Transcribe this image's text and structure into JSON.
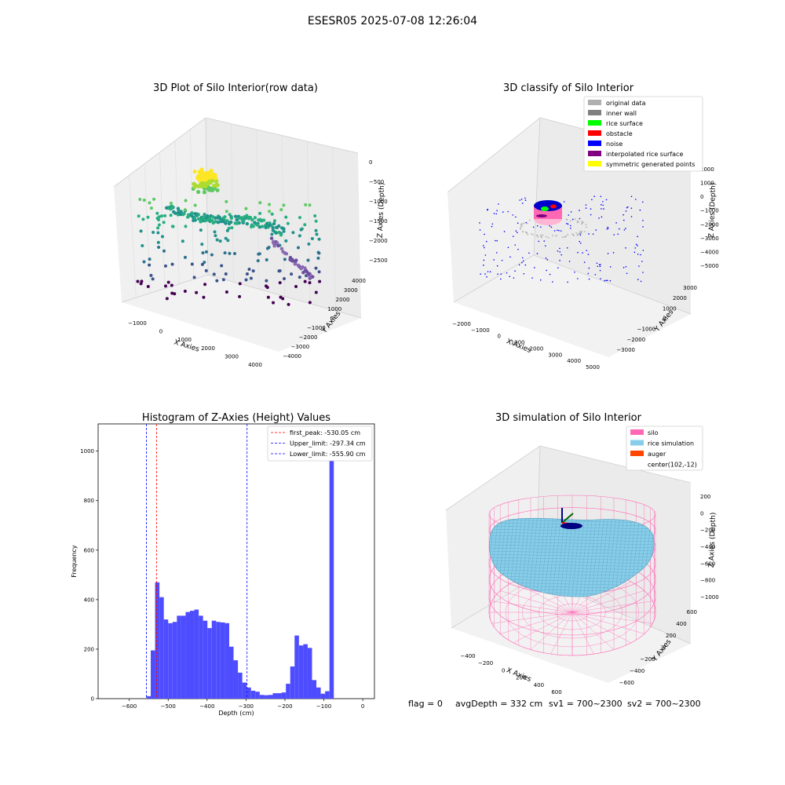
{
  "suptitle": "ESESR05 2025-07-08 12:26:04",
  "footer": {
    "flag": "flag = 0",
    "avg": "avgDepth = 332 cm",
    "sv1": "sv1 = 700~2300",
    "sv2": "sv2 = 700~2300"
  },
  "colors": {
    "hist_bar": "#4d4dff",
    "peak_line": "#ff0000",
    "limit_line": "#0000ff",
    "silo": "#ff69b4",
    "rice": "#87ceeb",
    "auger": "#ff4500"
  },
  "chart_data": [
    {
      "type": "scatter3d",
      "title": "3D Plot of Silo Interior(row data)",
      "xlabel": "X Axies",
      "ylabel": "Y Axies",
      "zlabel": "Z Axies (Depth)",
      "x_ticks": [
        "−1000",
        "0",
        "1000",
        "2000",
        "3000",
        "4000"
      ],
      "y_ticks": [
        "−4000",
        "−3000",
        "−2000",
        "−1000",
        "0",
        "1000",
        "2000",
        "3000",
        "4000"
      ],
      "z_ticks": [
        "0",
        "−500",
        "−1000",
        "−1500",
        "−2000",
        "−2500"
      ],
      "colormap": "viridis (by depth)"
    },
    {
      "type": "scatter3d",
      "title": "3D classify of Silo Interior",
      "xlabel": "X Axies",
      "ylabel": "Y Axies",
      "zlabel": "Z Axies (Depth)",
      "x_ticks": [
        "−2000",
        "−1000",
        "0",
        "1000",
        "2000",
        "3000",
        "4000",
        "5000"
      ],
      "y_ticks": [
        "−3000",
        "−2000",
        "−1000",
        "0",
        "1000",
        "2000",
        "3000"
      ],
      "z_ticks": [
        "2000",
        "1000",
        "0",
        "−1000",
        "−2000",
        "−3000",
        "−4000",
        "−5000"
      ],
      "legend": [
        {
          "label": "original data",
          "color": "#b0b0b0"
        },
        {
          "label": "inner wall",
          "color": "#808080"
        },
        {
          "label": "rice surface",
          "color": "#00ff00"
        },
        {
          "label": "obstacle",
          "color": "#ff0000"
        },
        {
          "label": "noise",
          "color": "#0000ff"
        },
        {
          "label": "interpolated rice surface",
          "color": "#800080"
        },
        {
          "label": "symmetric generated points",
          "color": "#ffff00"
        }
      ],
      "legend_position": "top-right"
    },
    {
      "type": "bar",
      "title": "Histogram of Z-Axies (Height) Values",
      "xlabel": "Depth (cm)",
      "ylabel": "Frequency",
      "xlim": [
        -680,
        30
      ],
      "ylim": [
        0,
        1110
      ],
      "x_ticks": [
        {
          "v": -600,
          "label": "−600"
        },
        {
          "v": -500,
          "label": "−500"
        },
        {
          "v": -400,
          "label": "−400"
        },
        {
          "v": -300,
          "label": "−300"
        },
        {
          "v": -200,
          "label": "−200"
        },
        {
          "v": -100,
          "label": "−100"
        },
        {
          "v": 0,
          "label": "0"
        }
      ],
      "y_ticks": [
        {
          "v": 0,
          "label": "0"
        },
        {
          "v": 200,
          "label": "200"
        },
        {
          "v": 400,
          "label": "400"
        },
        {
          "v": 600,
          "label": "600"
        },
        {
          "v": 800,
          "label": "800"
        },
        {
          "v": 1000,
          "label": "1000"
        }
      ],
      "bin_start": -556,
      "bin_width": 11.2,
      "values": [
        10,
        195,
        470,
        410,
        320,
        305,
        310,
        335,
        335,
        350,
        355,
        360,
        335,
        315,
        285,
        315,
        310,
        308,
        305,
        210,
        155,
        105,
        65,
        45,
        32,
        28,
        15,
        14,
        15,
        22,
        22,
        25,
        60,
        130,
        255,
        215,
        220,
        205,
        75,
        45,
        20,
        30,
        1050
      ],
      "lines": [
        {
          "label": "first_peak: -530.05 cm",
          "x": -530.05,
          "color": "#ff0000"
        },
        {
          "label": "Upper_limit: -297.34 cm",
          "x": -297.34,
          "color": "#0000ff"
        },
        {
          "label": "Lower_limit: -555.90 cm",
          "x": -555.9,
          "color": "#0000ff"
        }
      ],
      "legend_position": "top-right"
    },
    {
      "type": "surface3d",
      "title": "3D simulation of Silo Interior",
      "xlabel": "X Axies",
      "ylabel": "Y Axies",
      "zlabel": "Z Axies (Depth)",
      "x_ticks": [
        "−400",
        "−200",
        "0",
        "200",
        "400",
        "600"
      ],
      "y_ticks": [
        "−600",
        "−400",
        "−200",
        "0",
        "200",
        "400",
        "600"
      ],
      "z_ticks": [
        "200",
        "0",
        "−200",
        "−400",
        "−600",
        "−800",
        "−1000"
      ],
      "legend": [
        {
          "label": "silo",
          "color": "#ff69b4"
        },
        {
          "label": "rice simulation",
          "color": "#87ceeb"
        },
        {
          "label": "auger",
          "color": "#ff4500"
        },
        {
          "label": "center(102,-12)",
          "color": ""
        }
      ],
      "legend_position": "top-right"
    }
  ]
}
